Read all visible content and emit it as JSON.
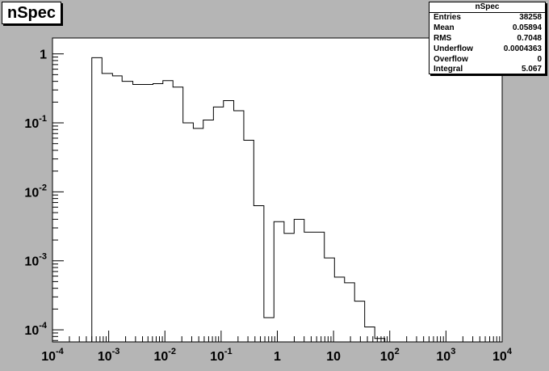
{
  "title": "nSpec",
  "stats": {
    "title": "nSpec",
    "rows": [
      {
        "label": "Entries",
        "value": "38258"
      },
      {
        "label": "Mean",
        "value": "0.05894"
      },
      {
        "label": "RMS",
        "value": "0.7048"
      },
      {
        "label": "Underflow",
        "value": "0.0004363"
      },
      {
        "label": "Overflow",
        "value": "0"
      },
      {
        "label": "Integral",
        "value": "5.067"
      }
    ]
  },
  "chart_data": {
    "type": "step-histogram",
    "xscale": "log",
    "yscale": "log",
    "xlim": [
      0.0001,
      10000
    ],
    "ylim": [
      6.68e-05,
      1.7
    ],
    "x_ticks": [
      {
        "base": "10",
        "exp": "-4"
      },
      {
        "base": "10",
        "exp": "-3"
      },
      {
        "base": "10",
        "exp": "-2"
      },
      {
        "base": "10",
        "exp": "-1"
      },
      {
        "base": "1",
        "exp": ""
      },
      {
        "base": "10",
        "exp": ""
      },
      {
        "base": "10",
        "exp": "2"
      },
      {
        "base": "10",
        "exp": "3"
      },
      {
        "base": "10",
        "exp": "4"
      }
    ],
    "y_ticks": [
      {
        "base": "1",
        "exp": ""
      },
      {
        "base": "10",
        "exp": "-1"
      },
      {
        "base": "10",
        "exp": "-2"
      },
      {
        "base": "10",
        "exp": "-3"
      },
      {
        "base": "10",
        "exp": "-4"
      }
    ],
    "bin_edges": [
      0.000501,
      0.000759,
      0.00117,
      0.00173,
      0.00269,
      0.00404,
      0.00614,
      0.00921,
      0.0139,
      0.021,
      0.032,
      0.0481,
      0.073,
      0.11,
      0.168,
      0.253,
      0.381,
      0.577,
      0.87,
      1.32,
      1.99,
      3.01,
      4.54,
      6.86,
      10.4,
      15.7,
      23.7,
      35.8,
      54.1,
      81.8,
      101
    ],
    "values": [
      0.88,
      0.52,
      0.48,
      0.4,
      0.36,
      0.36,
      0.37,
      0.41,
      0.33,
      0.1,
      0.083,
      0.11,
      0.17,
      0.21,
      0.15,
      0.056,
      0.0063,
      0.00015,
      0.0037,
      0.0025,
      0.004,
      0.0026,
      0.0026,
      0.0011,
      0.00058,
      0.00048,
      0.00026,
      0.00011,
      7.5e-05,
      6.68e-05
    ],
    "grid": false,
    "legend": "stats box top-right"
  }
}
